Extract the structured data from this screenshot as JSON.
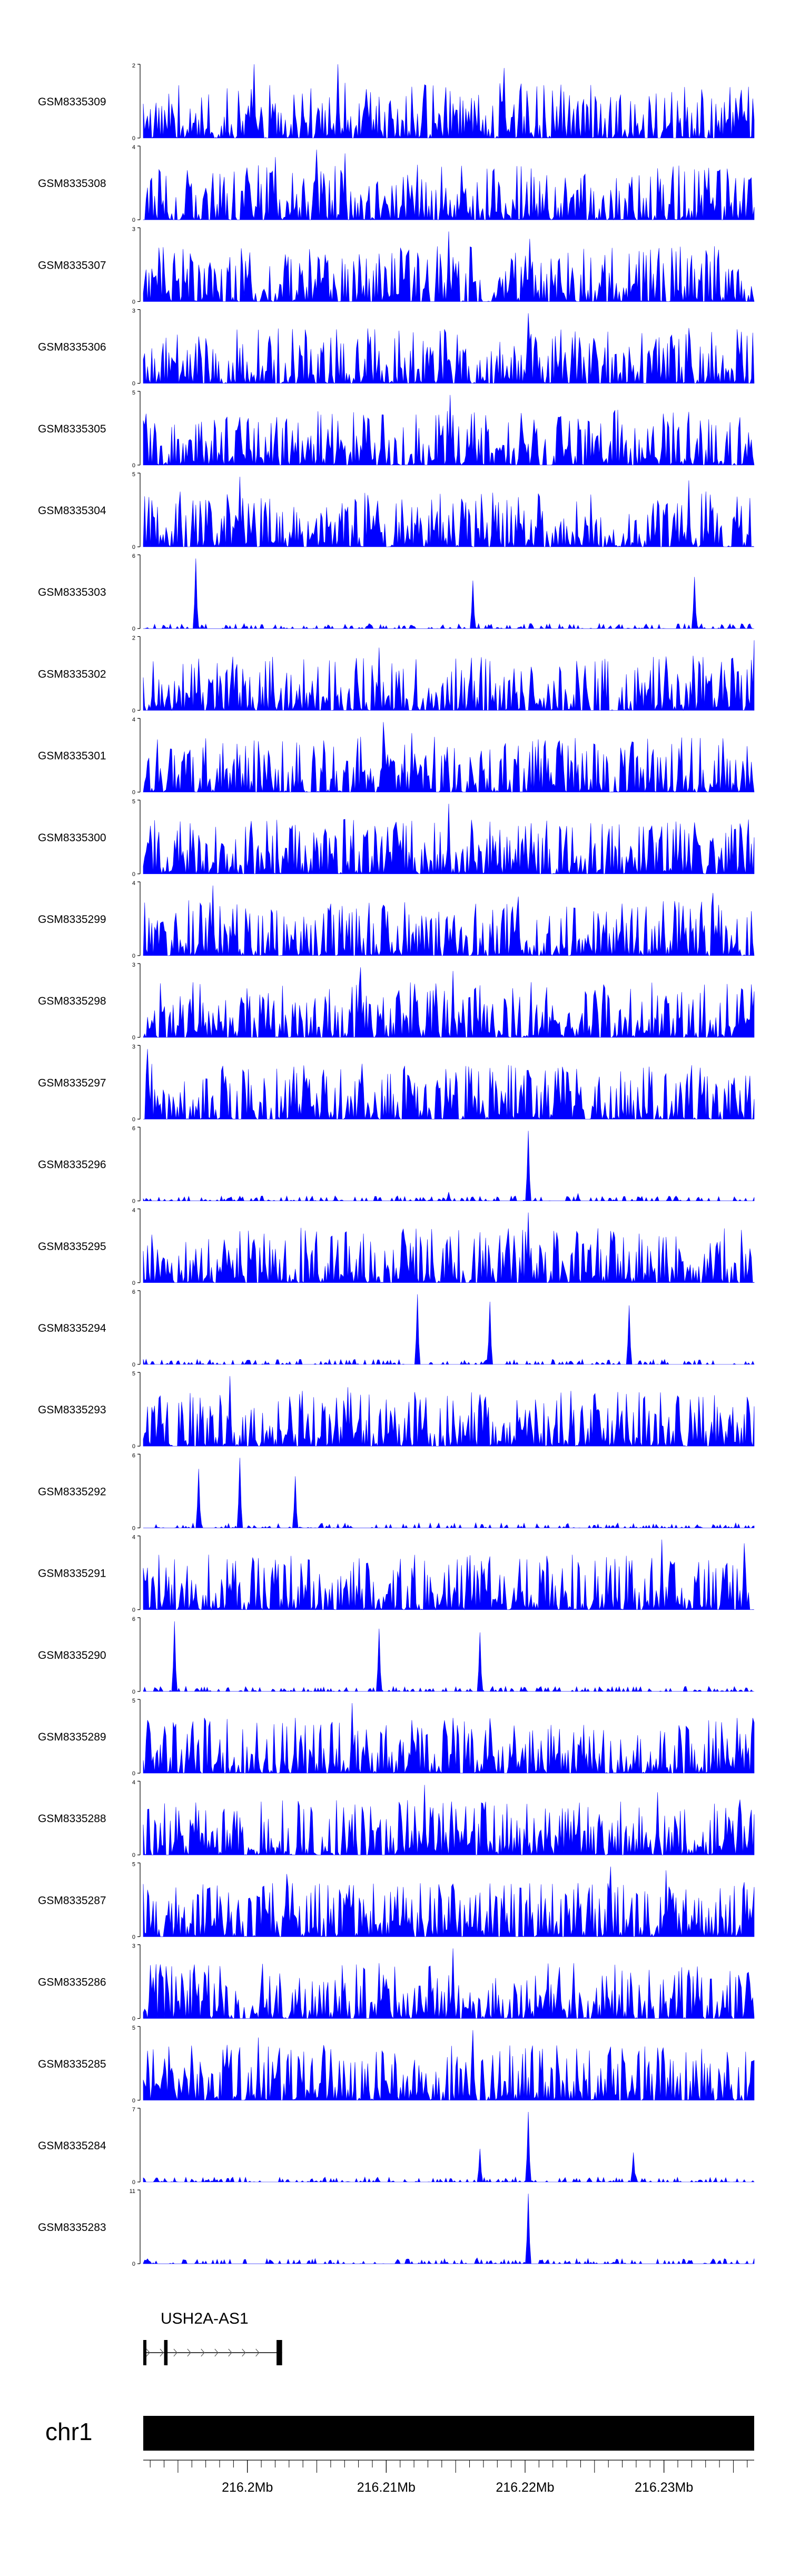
{
  "chart_data": {
    "type": "area",
    "title": "",
    "xlabel": "",
    "ylabel": "",
    "color": "#0000ff",
    "x_range_mb": [
      216.1925,
      216.2365
    ],
    "genome_axis": {
      "chromosome": "chr1",
      "tick_labels": [
        {
          "pos": 216.2,
          "label": "216.2Mb"
        },
        {
          "pos": 216.21,
          "label": "216.21Mb"
        },
        {
          "pos": 216.22,
          "label": "216.22Mb"
        },
        {
          "pos": 216.23,
          "label": "216.23Mb"
        }
      ],
      "minor_tick_step_mb": 0.001
    },
    "gene": {
      "name": "USH2A-AS1",
      "strand": "+",
      "start_mb": 216.1925,
      "end_mb": 216.2025,
      "exons_mb": [
        [
          216.1925,
          216.19265
        ],
        [
          216.194,
          216.19425
        ],
        [
          216.2021,
          216.2025
        ]
      ]
    },
    "series": [
      {
        "name": "GSM8335309",
        "ymax": 2,
        "peaks": [
          [
            216.2005,
            1.0
          ],
          [
            216.2065,
            1.0
          ],
          [
            216.2185,
            0.95
          ]
        ]
      },
      {
        "name": "GSM8335308",
        "ymax": 4,
        "peaks": [
          [
            216.205,
            0.95
          ],
          [
            216.207,
            0.9
          ],
          [
            216.202,
            0.85
          ]
        ]
      },
      {
        "name": "GSM8335307",
        "ymax": 3,
        "peaks": [
          [
            216.2145,
            0.95
          ],
          [
            216.2203,
            0.85
          ],
          [
            216.2255,
            0.5
          ]
        ]
      },
      {
        "name": "GSM8335306",
        "ymax": 3,
        "peaks": [
          [
            216.2202,
            0.95
          ],
          [
            216.2208,
            0.55
          ],
          [
            216.208,
            0.6
          ]
        ]
      },
      {
        "name": "GSM8335305",
        "ymax": 5,
        "peaks": [
          [
            216.2146,
            0.95
          ],
          [
            216.2232,
            0.6
          ],
          [
            216.2065,
            0.6
          ]
        ]
      },
      {
        "name": "GSM8335304",
        "ymax": 5,
        "peaks": [
          [
            216.1995,
            0.95
          ],
          [
            216.2318,
            0.9
          ],
          [
            216.233,
            0.75
          ]
        ]
      },
      {
        "name": "GSM8335303",
        "ymax": 6,
        "peaks": [
          [
            216.1963,
            0.95
          ],
          [
            216.2322,
            0.7
          ],
          [
            216.2162,
            0.65
          ]
        ]
      },
      {
        "name": "GSM8335302",
        "ymax": 2,
        "peaks": [
          [
            216.2365,
            0.95
          ],
          [
            216.2095,
            0.85
          ],
          [
            216.1965,
            0.7
          ]
        ]
      },
      {
        "name": "GSM8335301",
        "ymax": 4,
        "peaks": [
          [
            216.2098,
            0.95
          ],
          [
            216.2215,
            0.7
          ],
          [
            216.2118,
            0.8
          ]
        ]
      },
      {
        "name": "GSM8335300",
        "ymax": 5,
        "peaks": [
          [
            216.2145,
            0.95
          ],
          [
            216.2002,
            0.55
          ],
          [
            216.2318,
            0.55
          ]
        ]
      },
      {
        "name": "GSM8335299",
        "ymax": 4,
        "peaks": [
          [
            216.1975,
            0.95
          ],
          [
            216.2195,
            0.8
          ],
          [
            216.2335,
            0.85
          ]
        ]
      },
      {
        "name": "GSM8335298",
        "ymax": 3,
        "peaks": [
          [
            216.2082,
            0.95
          ],
          [
            216.2148,
            0.9
          ],
          [
            216.2015,
            0.6
          ]
        ]
      },
      {
        "name": "GSM8335297",
        "ymax": 3,
        "peaks": [
          [
            216.1928,
            0.95
          ],
          [
            216.2083,
            0.75
          ],
          [
            216.2222,
            0.65
          ]
        ]
      },
      {
        "name": "GSM8335296",
        "ymax": 6,
        "peaks": [
          [
            216.2202,
            0.95
          ],
          [
            216.2145,
            0.12
          ],
          [
            216.2238,
            0.1
          ]
        ]
      },
      {
        "name": "GSM8335295",
        "ymax": 4,
        "peaks": [
          [
            216.2202,
            0.95
          ],
          [
            216.1935,
            0.45
          ],
          [
            216.2262,
            0.7
          ]
        ]
      },
      {
        "name": "GSM8335294",
        "ymax": 6,
        "peaks": [
          [
            216.2122,
            0.95
          ],
          [
            216.2175,
            0.85
          ],
          [
            216.2275,
            0.8
          ]
        ]
      },
      {
        "name": "GSM8335293",
        "ymax": 5,
        "peaks": [
          [
            216.1987,
            0.95
          ],
          [
            216.2072,
            0.8
          ],
          [
            216.2233,
            0.75
          ]
        ]
      },
      {
        "name": "GSM8335292",
        "ymax": 6,
        "peaks": [
          [
            216.1995,
            0.95
          ],
          [
            216.1965,
            0.8
          ],
          [
            216.2035,
            0.7
          ]
        ]
      },
      {
        "name": "GSM8335291",
        "ymax": 4,
        "peaks": [
          [
            216.2298,
            0.95
          ],
          [
            216.2358,
            0.9
          ],
          [
            216.2008,
            0.7
          ]
        ]
      },
      {
        "name": "GSM8335290",
        "ymax": 6,
        "peaks": [
          [
            216.1947,
            0.95
          ],
          [
            216.2168,
            0.8
          ],
          [
            216.2095,
            0.85
          ]
        ]
      },
      {
        "name": "GSM8335289",
        "ymax": 5,
        "peaks": [
          [
            216.2075,
            0.95
          ],
          [
            216.2035,
            0.75
          ],
          [
            216.2148,
            0.75
          ]
        ]
      },
      {
        "name": "GSM8335288",
        "ymax": 4,
        "peaks": [
          [
            216.2128,
            0.95
          ],
          [
            216.2295,
            0.85
          ],
          [
            216.2355,
            0.75
          ]
        ]
      },
      {
        "name": "GSM8335287",
        "ymax": 5,
        "peaks": [
          [
            216.2262,
            0.95
          ],
          [
            216.2302,
            0.9
          ],
          [
            216.2028,
            0.85
          ]
        ]
      },
      {
        "name": "GSM8335286",
        "ymax": 3,
        "peaks": [
          [
            216.2148,
            0.95
          ],
          [
            216.2095,
            0.75
          ],
          [
            216.2235,
            0.75
          ]
        ]
      },
      {
        "name": "GSM8335285",
        "ymax": 5,
        "peaks": [
          [
            216.2162,
            0.95
          ],
          [
            216.2008,
            0.85
          ],
          [
            216.1985,
            0.75
          ]
        ]
      },
      {
        "name": "GSM8335284",
        "ymax": 7,
        "peaks": [
          [
            216.2202,
            0.95
          ],
          [
            216.2168,
            0.45
          ],
          [
            216.2278,
            0.4
          ]
        ]
      },
      {
        "name": "GSM8335283",
        "ymax": 11,
        "peaks": [
          [
            216.2202,
            0.95
          ],
          [
            216.2165,
            0.08
          ],
          [
            216.2108,
            0.06
          ]
        ]
      }
    ]
  }
}
